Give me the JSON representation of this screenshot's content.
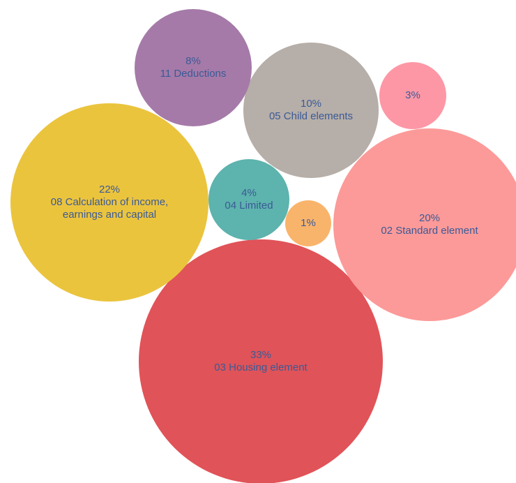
{
  "chart_data": {
    "type": "bubble",
    "title": "",
    "legend": "none",
    "colors": {
      "label_text": "#3b5a96"
    },
    "bubbles": [
      {
        "percent_label": "33%",
        "category": "03 Housing element",
        "value": 33,
        "color": "#e05358"
      },
      {
        "percent_label": "22%",
        "category": "08 Calculation of income, earnings and capital",
        "category_lines": [
          "08 Calculation of income,",
          "earnings and capital"
        ],
        "value": 22,
        "color": "#ebc43e"
      },
      {
        "percent_label": "20%",
        "category": "02 Standard element",
        "value": 20,
        "color": "#fc9a99"
      },
      {
        "percent_label": "10%",
        "category": "05 Child elements",
        "value": 10,
        "color": "#b6aea8"
      },
      {
        "percent_label": "8%",
        "category": "11 Deductions",
        "value": 8,
        "color": "#a57aa8"
      },
      {
        "percent_label": "4%",
        "category": "04 Limited",
        "value": 4,
        "color": "#5db3ad"
      },
      {
        "percent_label": "3%",
        "category": "",
        "value": 3,
        "color": "#fd97a6"
      },
      {
        "percent_label": "1%",
        "category": "",
        "value": 1,
        "color": "#f9b46b"
      }
    ]
  }
}
